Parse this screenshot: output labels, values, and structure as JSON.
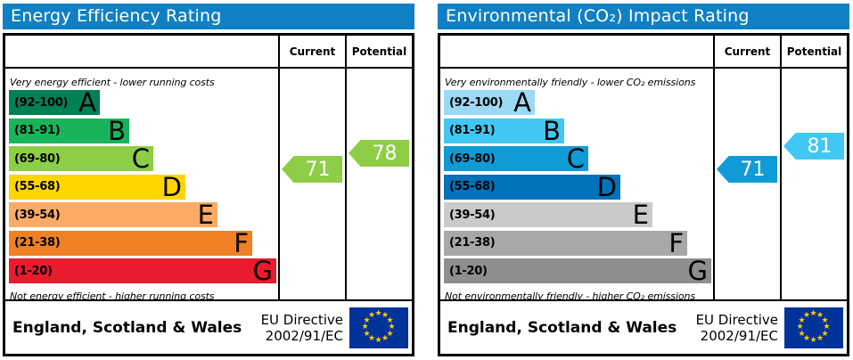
{
  "colors": {
    "panel_header_background": "#1080c4",
    "panel_header_text": "#ffffff",
    "table_border": "#000000",
    "eu_flag_blue": "#003399",
    "eu_flag_star": "#ffcc00",
    "arrow_text": "#ffffff"
  },
  "chart_data": [
    {
      "type": "bar",
      "title": "Energy Efficiency Rating",
      "column_headers": {
        "current": "Current",
        "potential": "Potential"
      },
      "top_caption": "Very energy efficient - lower running costs",
      "bottom_caption": "Not energy efficient - higher running costs",
      "categories": [
        "A",
        "B",
        "C",
        "D",
        "E",
        "F",
        "G"
      ],
      "bands": [
        {
          "letter": "A",
          "label": "(92-100)",
          "min": 92,
          "max": 100,
          "color": "#008054",
          "width_pct": 34
        },
        {
          "letter": "B",
          "label": "(81-91)",
          "min": 81,
          "max": 91,
          "color": "#19b459",
          "width_pct": 45
        },
        {
          "letter": "C",
          "label": "(69-80)",
          "min": 69,
          "max": 80,
          "color": "#8dce46",
          "width_pct": 54
        },
        {
          "letter": "D",
          "label": "(55-68)",
          "min": 55,
          "max": 68,
          "color": "#ffd500",
          "width_pct": 66
        },
        {
          "letter": "E",
          "label": "(39-54)",
          "min": 39,
          "max": 54,
          "color": "#fcaa65",
          "width_pct": 78
        },
        {
          "letter": "F",
          "label": "(21-38)",
          "min": 21,
          "max": 38,
          "color": "#ef8023",
          "width_pct": 91
        },
        {
          "letter": "G",
          "label": "(1-20)",
          "min": 1,
          "max": 20,
          "color": "#e91b2c",
          "width_pct": 100
        }
      ],
      "current": {
        "value": 71,
        "band": "C",
        "color": "#8dce46"
      },
      "potential": {
        "value": 78,
        "band": "C",
        "color": "#8dce46"
      },
      "footer": {
        "region": "England, Scotland & Wales",
        "directive_lines": [
          "EU Directive",
          "2002/91/EC"
        ],
        "flag": "eu-flag"
      }
    },
    {
      "type": "bar",
      "title": "Environmental (CO₂) Impact Rating",
      "column_headers": {
        "current": "Current",
        "potential": "Potential"
      },
      "top_caption": "Very environmentally friendly - lower CO₂ emissions",
      "bottom_caption": "Not environmentally friendly - higher CO₂ emissions",
      "categories": [
        "A",
        "B",
        "C",
        "D",
        "E",
        "F",
        "G"
      ],
      "bands": [
        {
          "letter": "A",
          "label": "(92-100)",
          "min": 92,
          "max": 100,
          "color": "#9bd9f4",
          "width_pct": 34
        },
        {
          "letter": "B",
          "label": "(81-91)",
          "min": 81,
          "max": 91,
          "color": "#41c8f2",
          "width_pct": 45
        },
        {
          "letter": "C",
          "label": "(69-80)",
          "min": 69,
          "max": 80,
          "color": "#119bd6",
          "width_pct": 54
        },
        {
          "letter": "D",
          "label": "(55-68)",
          "min": 55,
          "max": 68,
          "color": "#0072ba",
          "width_pct": 66
        },
        {
          "letter": "E",
          "label": "(39-54)",
          "min": 39,
          "max": 54,
          "color": "#cacaca",
          "width_pct": 78
        },
        {
          "letter": "F",
          "label": "(21-38)",
          "min": 21,
          "max": 38,
          "color": "#a8a8a8",
          "width_pct": 91
        },
        {
          "letter": "G",
          "label": "(1-20)",
          "min": 1,
          "max": 20,
          "color": "#8e8e8e",
          "width_pct": 100
        }
      ],
      "current": {
        "value": 71,
        "band": "C",
        "color": "#119bd6"
      },
      "potential": {
        "value": 81,
        "band": "B",
        "color": "#41c8f2"
      },
      "footer": {
        "region": "England, Scotland & Wales",
        "directive_lines": [
          "EU Directive",
          "2002/91/EC"
        ],
        "flag": "eu-flag"
      }
    }
  ]
}
